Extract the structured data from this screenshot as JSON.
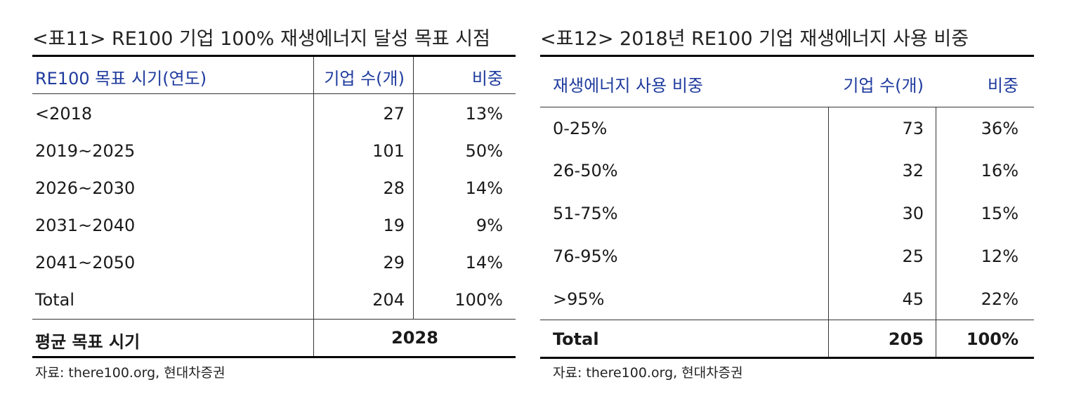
{
  "table11": {
    "title": "<표11> RE100 기업 100% 재생에너지 달성 목표 시점",
    "headers": [
      "RE100 목표 시기(연도)",
      "기업 수(개)",
      "비중"
    ],
    "rows": [
      [
        "<2018",
        "27",
        "13%"
      ],
      [
        "2019~2025",
        "101",
        "50%"
      ],
      [
        "2026~2030",
        "28",
        "14%"
      ],
      [
        "2031~2040",
        "19",
        "9%"
      ],
      [
        "2041~2050",
        "29",
        "14%"
      ],
      [
        "Total",
        "204",
        "100%"
      ]
    ],
    "summary": {
      "label": "평균 목표 시기",
      "value": "2028"
    },
    "source": "자료: there100.org, 현대차증권"
  },
  "table12": {
    "title": "<표12> 2018년 RE100 기업 재생에너지 사용 비중",
    "headers": [
      "재생에너지 사용 비중",
      "기업 수(개)",
      "비중"
    ],
    "rows": [
      [
        "0-25%",
        "73",
        "36%"
      ],
      [
        "26-50%",
        "32",
        "16%"
      ],
      [
        "51-75%",
        "30",
        "15%"
      ],
      [
        "76-95%",
        "25",
        "12%"
      ],
      [
        ">95%",
        "45",
        "22%"
      ]
    ],
    "total": [
      "Total",
      "205",
      "100%"
    ],
    "source": "자료: there100.org, 현대차증권"
  }
}
